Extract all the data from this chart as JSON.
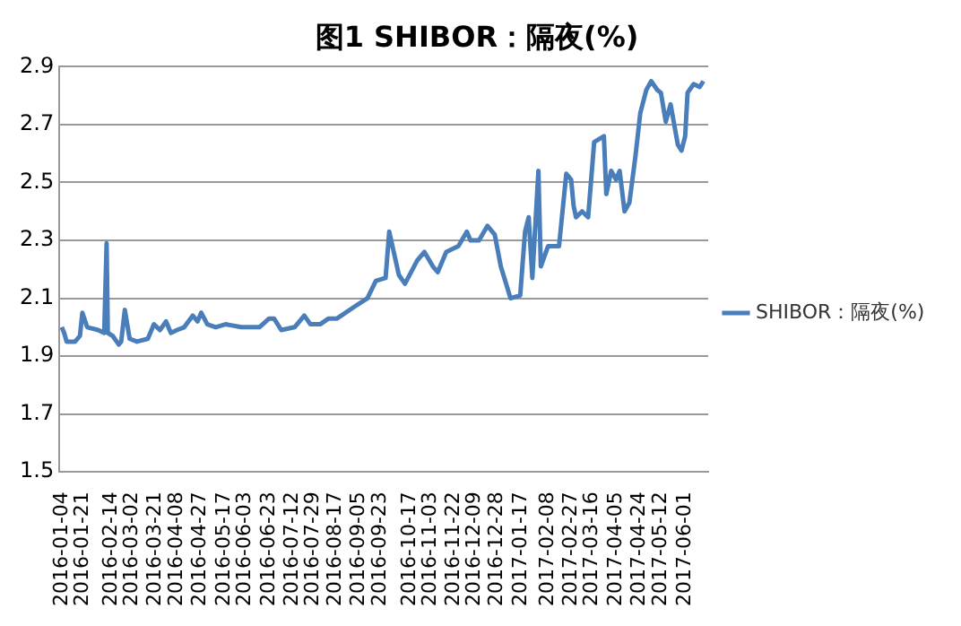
{
  "chart_data": {
    "type": "line",
    "title": "图1 SHIBOR：隔夜(%)",
    "x": [
      "2016-01-04",
      "2016-01-06",
      "2016-01-08",
      "2016-01-15",
      "2016-01-19",
      "2016-01-21",
      "2016-01-25",
      "2016-02-03",
      "2016-02-08",
      "2016-02-10",
      "2016-02-11",
      "2016-02-15",
      "2016-02-20",
      "2016-02-22",
      "2016-02-25",
      "2016-02-29",
      "2016-03-06",
      "2016-03-15",
      "2016-03-20",
      "2016-03-25",
      "2016-03-30",
      "2016-04-03",
      "2016-04-08",
      "2016-04-14",
      "2016-04-21",
      "2016-04-25",
      "2016-04-28",
      "2016-05-03",
      "2016-05-10",
      "2016-05-18",
      "2016-05-31",
      "2016-06-15",
      "2016-06-23",
      "2016-06-27",
      "2016-07-03",
      "2016-07-14",
      "2016-07-22",
      "2016-07-27",
      "2016-08-04",
      "2016-08-11",
      "2016-08-18",
      "2016-09-01",
      "2016-09-12",
      "2016-09-19",
      "2016-09-27",
      "2016-09-30",
      "2016-10-08",
      "2016-10-13",
      "2016-10-23",
      "2016-10-29",
      "2016-11-05",
      "2016-11-09",
      "2016-11-16",
      "2016-11-26",
      "2016-12-03",
      "2016-12-06",
      "2016-12-13",
      "2016-12-20",
      "2016-12-26",
      "2016-12-31",
      "2017-01-08",
      "2017-01-16",
      "2017-01-20",
      "2017-01-23",
      "2017-01-26",
      "2017-01-31",
      "2017-02-02",
      "2017-02-08",
      "2017-02-17",
      "2017-02-23",
      "2017-02-27",
      "2017-03-01",
      "2017-03-03",
      "2017-03-08",
      "2017-03-13",
      "2017-03-18",
      "2017-03-26",
      "2017-03-28",
      "2017-04-01",
      "2017-04-05",
      "2017-04-08",
      "2017-04-12",
      "2017-04-16",
      "2017-04-21",
      "2017-04-25",
      "2017-04-30",
      "2017-05-04",
      "2017-05-09",
      "2017-05-12",
      "2017-05-16",
      "2017-05-20",
      "2017-05-26",
      "2017-05-29",
      "2017-06-01",
      "2017-06-03",
      "2017-06-08",
      "2017-06-13",
      "2017-06-16"
    ],
    "series": [
      {
        "name": "SHIBOR：隔夜(%)",
        "color": "#4a7ebb",
        "values": [
          2.0,
          1.98,
          1.95,
          1.95,
          1.97,
          2.05,
          2.0,
          1.99,
          1.98,
          2.29,
          1.98,
          1.97,
          1.94,
          1.95,
          2.06,
          1.96,
          1.95,
          1.96,
          2.01,
          1.99,
          2.02,
          1.98,
          1.99,
          2.0,
          2.04,
          2.02,
          2.05,
          2.01,
          2.0,
          2.01,
          2.0,
          2.0,
          2.03,
          2.03,
          1.99,
          2.0,
          2.04,
          2.01,
          2.01,
          2.03,
          2.03,
          2.07,
          2.1,
          2.16,
          2.17,
          2.33,
          2.18,
          2.15,
          2.23,
          2.26,
          2.21,
          2.19,
          2.26,
          2.28,
          2.33,
          2.3,
          2.3,
          2.35,
          2.32,
          2.21,
          2.1,
          2.11,
          2.33,
          2.38,
          2.17,
          2.54,
          2.21,
          2.28,
          2.28,
          2.53,
          2.51,
          2.42,
          2.38,
          2.4,
          2.38,
          2.64,
          2.66,
          2.46,
          2.54,
          2.51,
          2.54,
          2.4,
          2.43,
          2.59,
          2.74,
          2.82,
          2.85,
          2.82,
          2.81,
          2.71,
          2.77,
          2.63,
          2.61,
          2.66,
          2.81,
          2.84,
          2.83,
          2.85
        ]
      }
    ],
    "xlim": [
      "2016-01-02",
      "2017-06-20"
    ],
    "xticks": [
      "2016-01-04",
      "2016-01-21",
      "2016-02-14",
      "2016-03-02",
      "2016-03-21",
      "2016-04-08",
      "2016-04-27",
      "2016-05-17",
      "2016-06-03",
      "2016-06-23",
      "2016-07-12",
      "2016-07-29",
      "2016-08-17",
      "2016-09-05",
      "2016-09-23",
      "2016-10-17",
      "2016-11-03",
      "2016-11-22",
      "2016-12-09",
      "2016-12-28",
      "2017-01-17",
      "2017-02-08",
      "2017-02-27",
      "2017-03-16",
      "2017-04-05",
      "2017-04-24",
      "2017-05-12",
      "2017-06-01"
    ],
    "ylim": [
      1.5,
      2.9
    ],
    "yticks": [
      1.5,
      1.7,
      1.9,
      2.1,
      2.3,
      2.5,
      2.7,
      2.9
    ],
    "grid": "y",
    "legend": "right",
    "marker": "none",
    "line_style": "solid"
  }
}
